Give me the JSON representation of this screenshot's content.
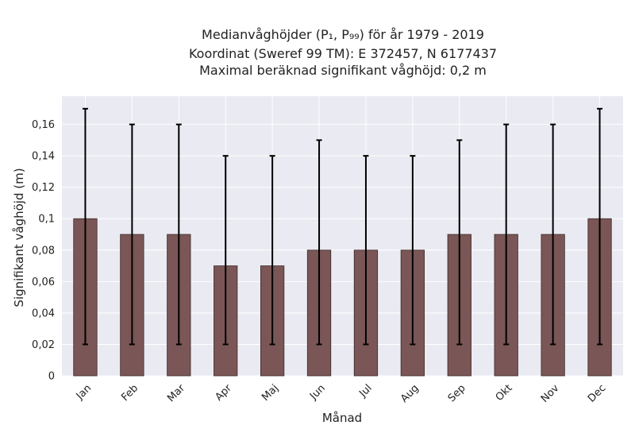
{
  "chart_data": {
    "type": "bar",
    "title_lines": [
      "Medianvåghöjder (P₁, P₉₉) för år 1979 - 2019",
      "Koordinat (Sweref 99 TM): E 372457, N 6177437",
      "Maximal beräknad signifikant våghöjd: 0,2 m"
    ],
    "xlabel": "Månad",
    "ylabel": "Signifikant våghöjd (m)",
    "categories": [
      "Jan",
      "Feb",
      "Mar",
      "Apr",
      "Maj",
      "Jun",
      "Jul",
      "Aug",
      "Sep",
      "Okt",
      "Nov",
      "Dec"
    ],
    "values": [
      0.1,
      0.09,
      0.09,
      0.07,
      0.07,
      0.08,
      0.08,
      0.08,
      0.09,
      0.09,
      0.09,
      0.1
    ],
    "error_low": [
      0.02,
      0.02,
      0.02,
      0.02,
      0.02,
      0.02,
      0.02,
      0.02,
      0.02,
      0.02,
      0.02,
      0.02
    ],
    "error_high": [
      0.17,
      0.16,
      0.16,
      0.14,
      0.14,
      0.15,
      0.14,
      0.14,
      0.15,
      0.16,
      0.16,
      0.17
    ],
    "ylim": [
      0,
      0.178
    ],
    "yticks": [
      0,
      0.02,
      0.04,
      0.06,
      0.08,
      0.1,
      0.12,
      0.14,
      0.16
    ],
    "ytick_labels": [
      "0",
      "0,02",
      "0,04",
      "0,06",
      "0,08",
      "0,1",
      "0,12",
      "0,14",
      "0,16"
    ],
    "grid": true,
    "colors": {
      "bar": "#7a5656",
      "bar_edge": "#3d2b2b",
      "errorbar": "#000000",
      "plot_bg": "#eaeaf2",
      "grid": "#ffffff"
    }
  }
}
